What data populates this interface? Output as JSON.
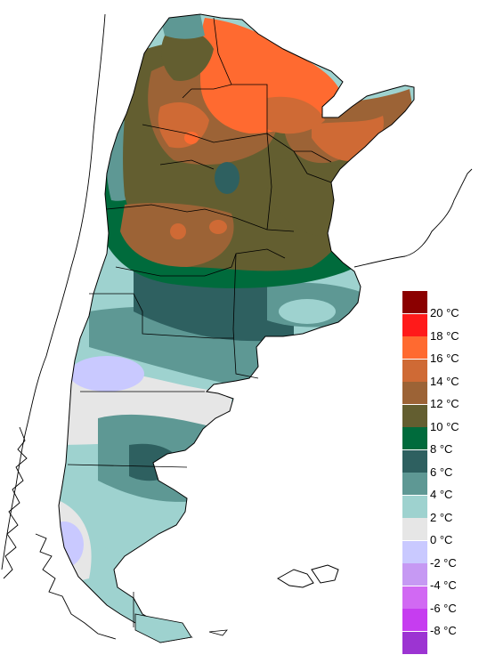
{
  "colors": {
    "background": "#ffffff",
    "outline": "#000000",
    "ocean": "#ffffff"
  },
  "legend": {
    "items": [
      {
        "label": "20 °C",
        "color": "#8b0000"
      },
      {
        "label": "18 °C",
        "color": "#ff1a1a"
      },
      {
        "label": "16 °C",
        "color": "#ff6a30"
      },
      {
        "label": "14 °C",
        "color": "#cf6a35"
      },
      {
        "label": "12 °C",
        "color": "#9c6336"
      },
      {
        "label": "10 °C",
        "color": "#635e30"
      },
      {
        "label": "8 °C",
        "color": "#006b3c"
      },
      {
        "label": "6 °C",
        "color": "#2e6060"
      },
      {
        "label": "4 °C",
        "color": "#5e9894"
      },
      {
        "label": "2 °C",
        "color": "#9ed2cf"
      },
      {
        "label": "0 °C",
        "color": "#e6e6e6"
      },
      {
        "label": "-2 °C",
        "color": "#c9c9ff"
      },
      {
        "label": "-4 °C",
        "color": "#c699f3"
      },
      {
        "label": "-6 °C",
        "color": "#d169f3"
      },
      {
        "label": "-8 °C",
        "color": "#c63df0"
      },
      {
        "label": "",
        "color": "#9c34d2"
      }
    ]
  }
}
